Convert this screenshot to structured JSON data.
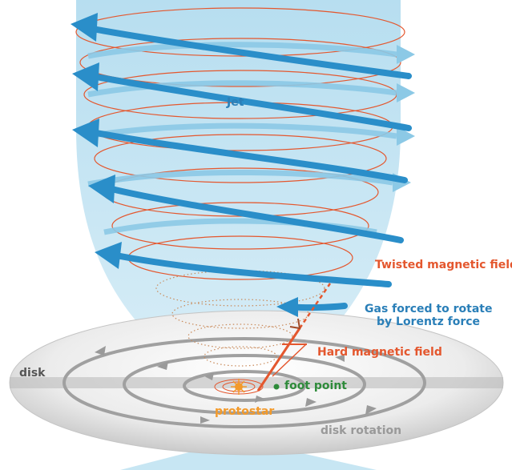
{
  "labels": {
    "jet": "Jet",
    "twisted_field": "Twisted magnetic field",
    "gas_forced_line1": "Gas forced to rotate",
    "gas_forced_line2": "by Lorentz force",
    "hard_field": "Hard magnetic field",
    "disk": "disk",
    "foot_point": "foot point",
    "protostar": "protostar",
    "disk_rotation": "disk rotation"
  },
  "colors": {
    "jet_fill": "#bfe3f1",
    "jet_arrow": "#2a8ec9",
    "jet_arrow_faded": "#8cc9e6",
    "field_line": "#e4572e",
    "label_blue": "#2a7fb8",
    "label_orange": "#e4572e",
    "label_green": "#2e8b3a",
    "label_gray": "#888888",
    "disk_gray": "#9a9a9a",
    "protostar": "#f39a2a"
  }
}
